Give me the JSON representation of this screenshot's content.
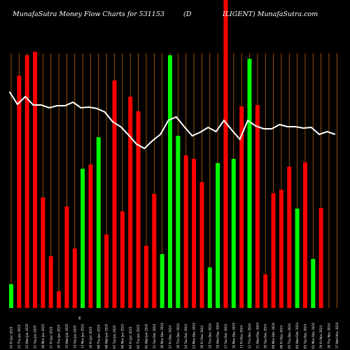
{
  "chart_data": {
    "type": "bar",
    "title_left": "MunafaSutra  Money Flow  Charts for 531153",
    "title_mid": "(D",
    "title_right": "ILIGENT) MunafaSutra.com",
    "axis_mark": "¢",
    "categories": [
      "24 Fri Jan 2025",
      "23 Thu Jan 2025",
      "22 Wed Jan 2025",
      "21 Tue Jan 2025",
      "20 Mon Jan 2025",
      "17 Fri Jan 2025",
      "16 Thu Jan 2025",
      "15 Wed Jan 2025",
      "14 Tue Jan 2025",
      "13 Mon Jan 2025",
      "10 Fri Jan 2025",
      "09 Thu Jan 2025",
      "08 Wed Jan 2025",
      "07 Tue Jan 2025",
      "06 Mon Jan 2025",
      "03 Fri Jan 2025",
      "02 Thu Jan 2025",
      "01 Wed Jan 2025",
      "31 Tue Dec 2024",
      "30 Mon Dec 2024",
      "27 Fri Dec 2024",
      "26 Thu Dec 2024",
      "24 Tue Dec 2024",
      "23 Mon Dec 2024",
      "20 Fri Dec 2024",
      "19 Thu Dec 2024",
      "18 Wed Dec 2024",
      "17 Tue Dec 2024",
      "16 Mon Dec 2024",
      "13 Fri Dec 2024",
      "12 Thu Dec 2024",
      "11 Wed Dec 2024",
      "10 Tue Dec 2024",
      "09 Mon Dec 2024",
      "06 Fri Dec 2024",
      "05 Thu Dec 2024",
      "04 Wed Dec 2024",
      "03 Tue Dec 2024",
      "02 Mon Dec 2024",
      "29 Fri Nov 2024",
      "28 Thu Nov 2024",
      "27 Wed Nov 2024"
    ],
    "series": [
      {
        "colors": [
          "#00ff00",
          "#ff0000",
          "#ff0000",
          "#ff0000",
          "#ff0000",
          "#ff0000",
          "#ff0000",
          "#ff0000",
          "#ff0000",
          "#00ff00",
          "#ff0000",
          "#00ff00",
          "#ff0000",
          "#ff0000",
          "#ff0000",
          "#ff0000",
          "#ff0000",
          "#ff0000",
          "#ff0000",
          "#00ff00",
          "#00ff00",
          "#00ff00",
          "#ff0000",
          "#ff0000",
          "#ff0000",
          "#00ff00",
          "#00ff00",
          "#ff0000",
          "#00ff00",
          "#ff0000",
          "#00ff00",
          "#ff0000",
          "#ff0000",
          "#ff0000",
          "#ff0000",
          "#ff0000",
          "#00ff00",
          "#ff0000",
          "#00ff00",
          "#ff0000",
          "#00ff00",
          "#ff0000"
        ],
        "values": [
          34,
          332,
          361,
          366,
          158,
          74,
          24,
          145,
          85,
          199,
          205,
          244,
          105,
          325,
          138,
          302,
          281,
          89,
          163,
          77,
          361,
          246,
          218,
          213,
          180,
          58,
          207,
          440,
          213,
          288,
          356,
          290,
          48,
          164,
          169,
          202,
          142,
          208,
          70,
          143,
          0,
          0
        ]
      },
      {
        "type": "line",
        "values": [
          309,
          291,
          302,
          290,
          290,
          286,
          289,
          289,
          294,
          286,
          287,
          285,
          280,
          266,
          259,
          247,
          234,
          228,
          239,
          248,
          268,
          273,
          259,
          246,
          251,
          258,
          252,
          268,
          254,
          241,
          268,
          260,
          256,
          256,
          262,
          259,
          259,
          257,
          258,
          248,
          252,
          248
        ]
      }
    ],
    "ylim": [
      0,
      440
    ]
  }
}
